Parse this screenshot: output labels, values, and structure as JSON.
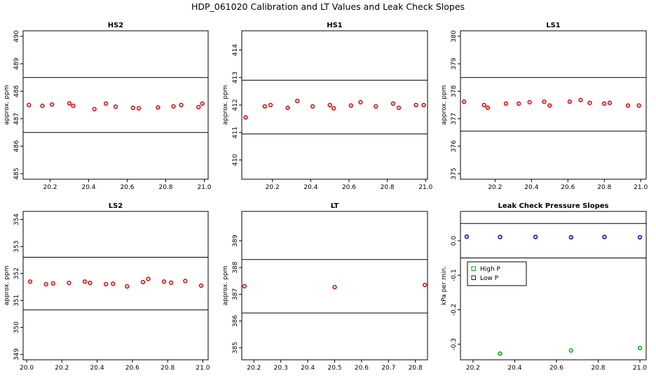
{
  "title": "HDP_061020  Calibration and LT Values and Leak Check Slopes",
  "chart_data": [
    {
      "id": "hs2",
      "type": "scatter",
      "title": "HS2",
      "xlabel": "",
      "ylabel": "approx. ppm",
      "xlim": [
        20.06,
        21.02
      ],
      "ylim": [
        484.8,
        490.2
      ],
      "xticks": [
        20.2,
        20.4,
        20.6,
        20.8,
        21.0
      ],
      "xtick_labels": [
        "20.2",
        "20.4",
        "20.6",
        "20.8",
        "21.0"
      ],
      "yticks": [
        485,
        486,
        487,
        488,
        489,
        490
      ],
      "ytick_labels": [
        "485",
        "486",
        "487",
        "488",
        "489",
        "490"
      ],
      "hlines": [
        488.5,
        486.5
      ],
      "series": [
        {
          "color": "#dd0000",
          "marker": "circle",
          "x": [
            20.09,
            20.16,
            20.21,
            20.3,
            20.32,
            20.43,
            20.49,
            20.54,
            20.63,
            20.66,
            20.76,
            20.84,
            20.88,
            20.97,
            20.99
          ],
          "y": [
            487.5,
            487.47,
            487.52,
            487.56,
            487.47,
            487.35,
            487.55,
            487.44,
            487.4,
            487.38,
            487.41,
            487.45,
            487.5,
            487.42,
            487.55
          ]
        }
      ]
    },
    {
      "id": "hs1",
      "type": "scatter",
      "title": "HS1",
      "xlabel": "",
      "ylabel": "approx. ppm",
      "xlim": [
        20.04,
        21.01
      ],
      "ylim": [
        409.3,
        414.7
      ],
      "xticks": [
        20.2,
        20.4,
        20.6,
        20.8,
        21.0
      ],
      "xtick_labels": [
        "20.2",
        "20.4",
        "20.6",
        "20.8",
        "21.0"
      ],
      "yticks": [
        410,
        411,
        412,
        413,
        414
      ],
      "ytick_labels": [
        "410",
        "411",
        "412",
        "413",
        "414"
      ],
      "hlines": [
        412.9,
        410.95
      ],
      "series": [
        {
          "color": "#dd0000",
          "marker": "circle",
          "x": [
            20.06,
            20.16,
            20.19,
            20.28,
            20.33,
            20.41,
            20.5,
            20.52,
            20.61,
            20.66,
            20.74,
            20.83,
            20.86,
            20.95,
            20.99
          ],
          "y": [
            411.55,
            411.95,
            412.0,
            411.9,
            412.15,
            411.95,
            412.0,
            411.88,
            411.98,
            412.1,
            411.95,
            412.05,
            411.9,
            412.0,
            412.0
          ]
        }
      ]
    },
    {
      "id": "ls1",
      "type": "scatter",
      "title": "LS1",
      "xlabel": "",
      "ylabel": "approx. ppm",
      "xlim": [
        20.01,
        21.03
      ],
      "ylim": [
        374.8,
        380.2
      ],
      "xticks": [
        20.2,
        20.4,
        20.6,
        20.8,
        21.0
      ],
      "xtick_labels": [
        "20.2",
        "20.4",
        "20.6",
        "20.8",
        "21.0"
      ],
      "yticks": [
        375,
        376,
        377,
        378,
        379,
        380
      ],
      "ytick_labels": [
        "375",
        "376",
        "377",
        "378",
        "379",
        "380"
      ],
      "hlines": [
        378.5,
        376.55
      ],
      "series": [
        {
          "color": "#dd0000",
          "marker": "circle",
          "x": [
            20.03,
            20.14,
            20.16,
            20.26,
            20.33,
            20.39,
            20.47,
            20.5,
            20.61,
            20.67,
            20.72,
            20.8,
            20.83,
            20.93,
            20.99
          ],
          "y": [
            377.62,
            377.5,
            377.4,
            377.55,
            377.55,
            377.6,
            377.62,
            377.48,
            377.62,
            377.68,
            377.58,
            377.55,
            377.58,
            377.48,
            377.48
          ]
        }
      ]
    },
    {
      "id": "ls2",
      "type": "scatter",
      "title": "LS2",
      "xlabel": "",
      "ylabel": "approx. ppm",
      "xlim": [
        19.98,
        21.03
      ],
      "ylim": [
        348.8,
        354.3
      ],
      "xticks": [
        20.0,
        20.2,
        20.4,
        20.6,
        20.8,
        21.0
      ],
      "xtick_labels": [
        "20.0",
        "20.2",
        "20.4",
        "20.6",
        "20.8",
        "21.0"
      ],
      "yticks": [
        349,
        350,
        351,
        352,
        353,
        354
      ],
      "ytick_labels": [
        "349",
        "350",
        "351",
        "352",
        "353",
        "354"
      ],
      "hlines": [
        352.6,
        350.65
      ],
      "series": [
        {
          "color": "#dd0000",
          "marker": "circle",
          "x": [
            20.02,
            20.11,
            20.15,
            20.24,
            20.33,
            20.36,
            20.45,
            20.49,
            20.57,
            20.66,
            20.69,
            20.78,
            20.82,
            20.9,
            20.99
          ],
          "y": [
            351.7,
            351.6,
            351.63,
            351.65,
            351.7,
            351.65,
            351.6,
            351.62,
            351.52,
            351.68,
            351.8,
            351.7,
            351.66,
            351.72,
            351.55
          ]
        }
      ]
    },
    {
      "id": "lt",
      "type": "scatter",
      "title": "LT",
      "xlabel": "",
      "ylabel": "approx. ppm",
      "xlim": [
        20.155,
        20.845
      ],
      "ylim": [
        384.55,
        390.1
      ],
      "xticks": [
        20.2,
        20.3,
        20.4,
        20.5,
        20.6,
        20.7,
        20.8
      ],
      "xtick_labels": [
        "20.2",
        "20.3",
        "20.4",
        "20.5",
        "20.6",
        "20.7",
        "20.8"
      ],
      "yticks": [
        385,
        386,
        387,
        388,
        389
      ],
      "ytick_labels": [
        "385",
        "386",
        "387",
        "388",
        "389"
      ],
      "hlines": [
        388.3,
        386.3
      ],
      "series": [
        {
          "color": "#dd0000",
          "marker": "circle",
          "x": [
            20.165,
            20.5,
            20.835
          ],
          "y": [
            387.3,
            387.27,
            387.35
          ]
        }
      ]
    },
    {
      "id": "leak",
      "type": "scatter",
      "title": "Leak Check Pressure Slopes",
      "xlabel": "",
      "ylabel": "kPa per min.",
      "xlim": [
        20.14,
        21.03
      ],
      "ylim": [
        -0.345,
        0.085
      ],
      "xticks": [
        20.2,
        20.4,
        20.6,
        20.8,
        21.0
      ],
      "xtick_labels": [
        "20.2",
        "20.4",
        "20.6",
        "20.8",
        "21.0"
      ],
      "yticks": [
        0.0,
        -0.1,
        -0.2,
        -0.3
      ],
      "ytick_labels": [
        "0.0",
        "-0.1",
        "-0.2",
        "-0.3"
      ],
      "hlines": [
        0.05,
        -0.05
      ],
      "legend": {
        "position": "left-middle",
        "entries": [
          {
            "name": "High P",
            "color": "#00aa00",
            "marker": "square"
          },
          {
            "name": "Low P",
            "color": "#0000cc",
            "marker": "square"
          }
        ]
      },
      "series": [
        {
          "name": "High P",
          "color": "#00aa00",
          "marker": "circle",
          "x": [
            20.33,
            20.67,
            21.0
          ],
          "y": [
            -0.327,
            -0.318,
            -0.311
          ]
        },
        {
          "name": "Low P",
          "color": "#0000cc",
          "marker": "circle",
          "x": [
            20.17,
            20.33,
            20.5,
            20.67,
            20.83,
            21.0
          ],
          "y": [
            0.012,
            0.011,
            0.011,
            0.01,
            0.011,
            0.01
          ]
        }
      ]
    }
  ]
}
